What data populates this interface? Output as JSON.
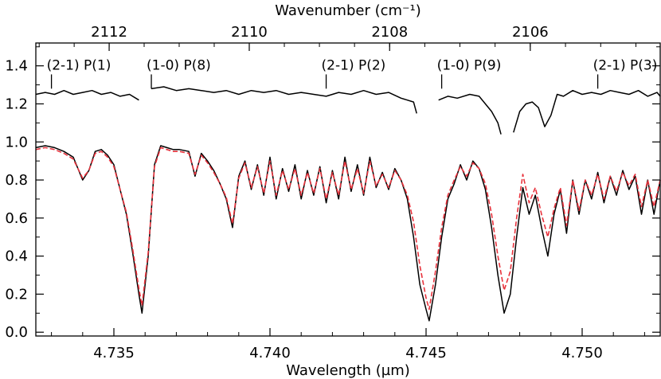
{
  "chart_data": {
    "type": "line",
    "title": "",
    "xlabel": "Wavelength (µm)",
    "x2label": "Wavenumber (cm⁻¹)",
    "ylabel": "",
    "xlim": [
      4.7325,
      4.7525
    ],
    "ylim": [
      -0.02,
      1.52
    ],
    "x_ticks": [
      "4.735",
      "4.740",
      "4.745",
      "4.750"
    ],
    "x2_ticks": [
      "2112",
      "2110",
      "2108",
      "2106"
    ],
    "y_ticks": [
      "0.0",
      "0.2",
      "0.4",
      "0.6",
      "0.8",
      "1.0",
      "1.2",
      "1.4"
    ],
    "annotations": [
      {
        "label": "(2-1) P(1)",
        "x": 4.733
      },
      {
        "label": "(1-0) P(8)",
        "x": 4.7362
      },
      {
        "label": "(2-1) P(2)",
        "x": 4.7418
      },
      {
        "label": "(1-0) P(9)",
        "x": 4.7455
      },
      {
        "label": "(2-1) P(3)",
        "x": 4.7505
      }
    ],
    "series": [
      {
        "color": "#000000",
        "style": "solid",
        "segments": [
          [
            [
              4.7325,
              1.25
            ],
            [
              4.7328,
              1.26
            ],
            [
              4.7331,
              1.25
            ],
            [
              4.7334,
              1.27
            ],
            [
              4.7337,
              1.25
            ],
            [
              4.734,
              1.26
            ],
            [
              4.7343,
              1.27
            ],
            [
              4.7346,
              1.25
            ],
            [
              4.7349,
              1.26
            ],
            [
              4.7352,
              1.24
            ],
            [
              4.7355,
              1.25
            ],
            [
              4.7358,
              1.22
            ]
          ],
          [
            [
              4.7362,
              1.28
            ],
            [
              4.7366,
              1.29
            ],
            [
              4.737,
              1.27
            ],
            [
              4.7374,
              1.28
            ],
            [
              4.7378,
              1.27
            ],
            [
              4.7382,
              1.26
            ],
            [
              4.7386,
              1.27
            ],
            [
              4.739,
              1.25
            ],
            [
              4.7394,
              1.27
            ],
            [
              4.7398,
              1.26
            ],
            [
              4.7402,
              1.27
            ],
            [
              4.7406,
              1.25
            ],
            [
              4.741,
              1.26
            ],
            [
              4.7414,
              1.25
            ],
            [
              4.7418,
              1.24
            ],
            [
              4.7422,
              1.26
            ],
            [
              4.7426,
              1.25
            ],
            [
              4.743,
              1.27
            ],
            [
              4.7434,
              1.25
            ],
            [
              4.7438,
              1.26
            ],
            [
              4.7442,
              1.23
            ],
            [
              4.7446,
              1.21
            ],
            [
              4.7447,
              1.15
            ]
          ],
          [
            [
              4.7454,
              1.22
            ],
            [
              4.7457,
              1.24
            ],
            [
              4.746,
              1.23
            ],
            [
              4.7464,
              1.25
            ],
            [
              4.7467,
              1.24
            ],
            [
              4.7469,
              1.2
            ],
            [
              4.7471,
              1.16
            ],
            [
              4.7473,
              1.1
            ],
            [
              4.7474,
              1.04
            ]
          ],
          [
            [
              4.7478,
              1.05
            ],
            [
              4.748,
              1.16
            ],
            [
              4.7482,
              1.2
            ],
            [
              4.7484,
              1.21
            ],
            [
              4.7486,
              1.18
            ],
            [
              4.7488,
              1.08
            ],
            [
              4.749,
              1.14
            ],
            [
              4.7492,
              1.25
            ],
            [
              4.7494,
              1.24
            ],
            [
              4.7497,
              1.27
            ],
            [
              4.75,
              1.25
            ],
            [
              4.7503,
              1.26
            ],
            [
              4.7506,
              1.25
            ],
            [
              4.7509,
              1.27
            ],
            [
              4.7512,
              1.26
            ],
            [
              4.7515,
              1.25
            ],
            [
              4.7518,
              1.27
            ],
            [
              4.7521,
              1.24
            ],
            [
              4.7524,
              1.26
            ],
            [
              4.7525,
              1.24
            ]
          ]
        ]
      },
      {
        "color": "#000000",
        "style": "solid",
        "segments": [
          [
            [
              4.7325,
              0.97
            ],
            [
              4.7328,
              0.98
            ],
            [
              4.7331,
              0.97
            ],
            [
              4.7334,
              0.95
            ],
            [
              4.7337,
              0.92
            ],
            [
              4.734,
              0.8
            ],
            [
              4.7342,
              0.85
            ],
            [
              4.7344,
              0.95
            ],
            [
              4.7346,
              0.96
            ],
            [
              4.7348,
              0.93
            ],
            [
              4.735,
              0.88
            ],
            [
              4.7352,
              0.75
            ],
            [
              4.7354,
              0.62
            ],
            [
              4.7356,
              0.42
            ],
            [
              4.7358,
              0.2
            ],
            [
              4.7359,
              0.1
            ],
            [
              4.7361,
              0.4
            ],
            [
              4.7363,
              0.88
            ],
            [
              4.7365,
              0.98
            ],
            [
              4.7367,
              0.97
            ],
            [
              4.7369,
              0.96
            ],
            [
              4.7371,
              0.96
            ],
            [
              4.7374,
              0.95
            ],
            [
              4.7376,
              0.82
            ],
            [
              4.7378,
              0.94
            ],
            [
              4.738,
              0.9
            ],
            [
              4.7382,
              0.85
            ],
            [
              4.7384,
              0.78
            ],
            [
              4.7386,
              0.7
            ],
            [
              4.7388,
              0.55
            ],
            [
              4.739,
              0.82
            ],
            [
              4.7392,
              0.9
            ],
            [
              4.7394,
              0.75
            ],
            [
              4.7396,
              0.88
            ],
            [
              4.7398,
              0.72
            ],
            [
              4.74,
              0.92
            ],
            [
              4.7402,
              0.7
            ],
            [
              4.7404,
              0.86
            ],
            [
              4.7406,
              0.74
            ],
            [
              4.7408,
              0.88
            ],
            [
              4.741,
              0.7
            ],
            [
              4.7412,
              0.85
            ],
            [
              4.7414,
              0.72
            ],
            [
              4.7416,
              0.87
            ],
            [
              4.7418,
              0.68
            ],
            [
              4.742,
              0.85
            ],
            [
              4.7422,
              0.7
            ],
            [
              4.7424,
              0.92
            ],
            [
              4.7426,
              0.74
            ],
            [
              4.7428,
              0.88
            ],
            [
              4.743,
              0.72
            ],
            [
              4.7432,
              0.92
            ],
            [
              4.7434,
              0.76
            ],
            [
              4.7436,
              0.84
            ],
            [
              4.7438,
              0.75
            ],
            [
              4.744,
              0.86
            ],
            [
              4.7442,
              0.8
            ],
            [
              4.7444,
              0.7
            ],
            [
              4.7446,
              0.5
            ],
            [
              4.7448,
              0.25
            ],
            [
              4.745,
              0.12
            ],
            [
              4.7451,
              0.06
            ],
            [
              4.7453,
              0.25
            ],
            [
              4.7455,
              0.5
            ],
            [
              4.7457,
              0.7
            ],
            [
              4.7459,
              0.78
            ],
            [
              4.7461,
              0.88
            ],
            [
              4.7463,
              0.8
            ],
            [
              4.7465,
              0.9
            ],
            [
              4.7467,
              0.86
            ],
            [
              4.7469,
              0.75
            ],
            [
              4.7471,
              0.55
            ],
            [
              4.7473,
              0.3
            ],
            [
              4.7475,
              0.1
            ],
            [
              4.7477,
              0.2
            ],
            [
              4.7479,
              0.5
            ],
            [
              4.7481,
              0.76
            ],
            [
              4.7483,
              0.62
            ],
            [
              4.7485,
              0.72
            ],
            [
              4.7487,
              0.55
            ],
            [
              4.7489,
              0.4
            ],
            [
              4.7491,
              0.62
            ],
            [
              4.7493,
              0.75
            ],
            [
              4.7495,
              0.52
            ],
            [
              4.7497,
              0.8
            ],
            [
              4.7499,
              0.62
            ],
            [
              4.7501,
              0.8
            ],
            [
              4.7503,
              0.7
            ],
            [
              4.7505,
              0.84
            ],
            [
              4.7507,
              0.68
            ],
            [
              4.7509,
              0.82
            ],
            [
              4.7511,
              0.72
            ],
            [
              4.7513,
              0.85
            ],
            [
              4.7515,
              0.75
            ],
            [
              4.7517,
              0.82
            ],
            [
              4.7519,
              0.62
            ],
            [
              4.7521,
              0.8
            ],
            [
              4.7523,
              0.62
            ],
            [
              4.7525,
              0.8
            ]
          ]
        ]
      },
      {
        "color": "#e8323c",
        "style": "dashed",
        "segments": [
          [
            [
              4.7325,
              0.96
            ],
            [
              4.7328,
              0.97
            ],
            [
              4.7331,
              0.96
            ],
            [
              4.7334,
              0.94
            ],
            [
              4.7337,
              0.91
            ],
            [
              4.734,
              0.81
            ],
            [
              4.7342,
              0.85
            ],
            [
              4.7344,
              0.94
            ],
            [
              4.7346,
              0.95
            ],
            [
              4.7348,
              0.92
            ],
            [
              4.735,
              0.87
            ],
            [
              4.7352,
              0.75
            ],
            [
              4.7354,
              0.63
            ],
            [
              4.7356,
              0.44
            ],
            [
              4.7358,
              0.23
            ],
            [
              4.7359,
              0.14
            ],
            [
              4.7361,
              0.42
            ],
            [
              4.7363,
              0.87
            ],
            [
              4.7365,
              0.97
            ],
            [
              4.7367,
              0.96
            ],
            [
              4.7369,
              0.95
            ],
            [
              4.7371,
              0.95
            ],
            [
              4.7374,
              0.94
            ],
            [
              4.7376,
              0.83
            ],
            [
              4.7378,
              0.93
            ],
            [
              4.738,
              0.89
            ],
            [
              4.7382,
              0.84
            ],
            [
              4.7384,
              0.78
            ],
            [
              4.7386,
              0.71
            ],
            [
              4.7388,
              0.57
            ],
            [
              4.739,
              0.81
            ],
            [
              4.7392,
              0.89
            ],
            [
              4.7394,
              0.76
            ],
            [
              4.7396,
              0.87
            ],
            [
              4.7398,
              0.73
            ],
            [
              4.74,
              0.9
            ],
            [
              4.7402,
              0.72
            ],
            [
              4.7404,
              0.85
            ],
            [
              4.7406,
              0.75
            ],
            [
              4.7408,
              0.86
            ],
            [
              4.741,
              0.72
            ],
            [
              4.7412,
              0.84
            ],
            [
              4.7414,
              0.73
            ],
            [
              4.7416,
              0.86
            ],
            [
              4.7418,
              0.7
            ],
            [
              4.742,
              0.84
            ],
            [
              4.7422,
              0.72
            ],
            [
              4.7424,
              0.9
            ],
            [
              4.7426,
              0.75
            ],
            [
              4.7428,
              0.86
            ],
            [
              4.743,
              0.73
            ],
            [
              4.7432,
              0.9
            ],
            [
              4.7434,
              0.77
            ],
            [
              4.7436,
              0.83
            ],
            [
              4.7438,
              0.76
            ],
            [
              4.744,
              0.85
            ],
            [
              4.7442,
              0.8
            ],
            [
              4.7444,
              0.72
            ],
            [
              4.7446,
              0.58
            ],
            [
              4.7448,
              0.35
            ],
            [
              4.745,
              0.18
            ],
            [
              4.7451,
              0.12
            ],
            [
              4.7453,
              0.32
            ],
            [
              4.7455,
              0.55
            ],
            [
              4.7457,
              0.72
            ],
            [
              4.7459,
              0.8
            ],
            [
              4.7461,
              0.87
            ],
            [
              4.7463,
              0.82
            ],
            [
              4.7465,
              0.89
            ],
            [
              4.7467,
              0.86
            ],
            [
              4.7469,
              0.78
            ],
            [
              4.7471,
              0.62
            ],
            [
              4.7473,
              0.4
            ],
            [
              4.7475,
              0.22
            ],
            [
              4.7477,
              0.32
            ],
            [
              4.7479,
              0.6
            ],
            [
              4.7481,
              0.83
            ],
            [
              4.7483,
              0.68
            ],
            [
              4.7485,
              0.76
            ],
            [
              4.7487,
              0.62
            ],
            [
              4.7489,
              0.5
            ],
            [
              4.7491,
              0.65
            ],
            [
              4.7493,
              0.76
            ],
            [
              4.7495,
              0.56
            ],
            [
              4.7497,
              0.8
            ],
            [
              4.7499,
              0.64
            ],
            [
              4.7501,
              0.8
            ],
            [
              4.7503,
              0.72
            ],
            [
              4.7505,
              0.83
            ],
            [
              4.7507,
              0.7
            ],
            [
              4.7509,
              0.82
            ],
            [
              4.7511,
              0.74
            ],
            [
              4.7513,
              0.84
            ],
            [
              4.7515,
              0.77
            ],
            [
              4.7517,
              0.83
            ],
            [
              4.7519,
              0.66
            ],
            [
              4.7521,
              0.8
            ],
            [
              4.7523,
              0.66
            ],
            [
              4.7525,
              0.8
            ]
          ]
        ]
      }
    ]
  }
}
